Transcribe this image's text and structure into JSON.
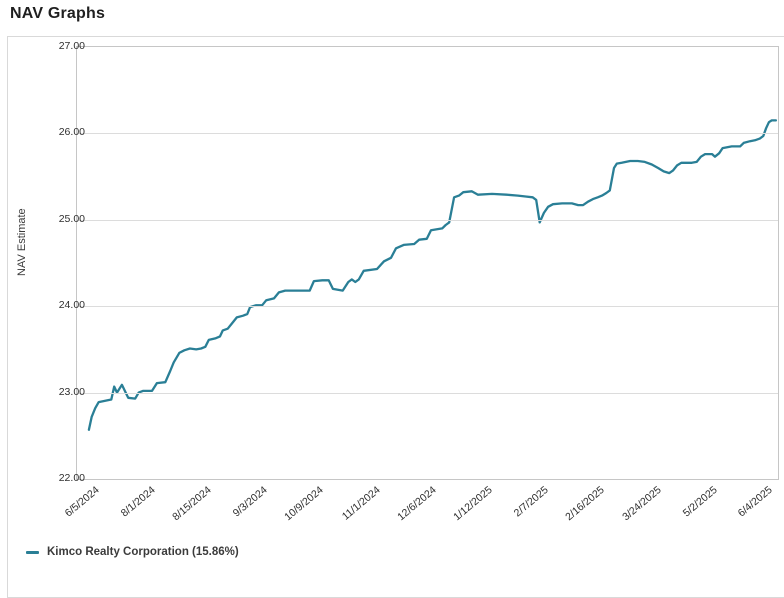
{
  "page": {
    "title": "NAV Graphs"
  },
  "legend": {
    "label": "Kimco Realty Corporation (15.86%)",
    "color": "#2a7f96"
  },
  "colors": {
    "line": "#2a7f96",
    "grid": "#dcdcdc",
    "plot_border": "#c6c6c6",
    "tick_text": "#2e2e2e"
  },
  "chart_data": {
    "type": "line",
    "title": "NAV Graphs",
    "xlabel": "",
    "ylabel": "NAV Estimate",
    "ylim": [
      22,
      27
    ],
    "grid": "horizontal",
    "legend_position": "bottom-left",
    "y_ticks": [
      {
        "value": 27,
        "label": "27.00"
      },
      {
        "value": 26,
        "label": "26.00"
      },
      {
        "value": 25,
        "label": "25.00"
      },
      {
        "value": 24,
        "label": "24.00"
      },
      {
        "value": 23,
        "label": "23.00"
      },
      {
        "value": 22,
        "label": "22.00"
      }
    ],
    "x_ticks": [
      {
        "pos": 0.017,
        "label": "6/5/2024"
      },
      {
        "pos": 0.097,
        "label": "8/1/2024"
      },
      {
        "pos": 0.177,
        "label": "8/15/2024"
      },
      {
        "pos": 0.257,
        "label": "9/3/2024"
      },
      {
        "pos": 0.337,
        "label": "10/9/2024"
      },
      {
        "pos": 0.418,
        "label": "11/1/2024"
      },
      {
        "pos": 0.498,
        "label": "12/6/2024"
      },
      {
        "pos": 0.578,
        "label": "1/12/2025"
      },
      {
        "pos": 0.658,
        "label": "2/7/2025"
      },
      {
        "pos": 0.738,
        "label": "2/16/2025"
      },
      {
        "pos": 0.819,
        "label": "3/24/2025"
      },
      {
        "pos": 0.899,
        "label": "5/2/2025"
      },
      {
        "pos": 0.977,
        "label": "6/4/2025"
      }
    ],
    "series": [
      {
        "name": "Kimco Realty Corporation",
        "gain_pct": "15.86%",
        "color": "#2a7f96",
        "points": [
          [
            0.017,
            22.57
          ],
          [
            0.021,
            22.72
          ],
          [
            0.026,
            22.82
          ],
          [
            0.031,
            22.89
          ],
          [
            0.043,
            22.91
          ],
          [
            0.049,
            22.92
          ],
          [
            0.053,
            23.07
          ],
          [
            0.057,
            23.0
          ],
          [
            0.064,
            23.09
          ],
          [
            0.073,
            22.94
          ],
          [
            0.083,
            22.93
          ],
          [
            0.088,
            23.0
          ],
          [
            0.094,
            23.02
          ],
          [
            0.107,
            23.02
          ],
          [
            0.114,
            23.11
          ],
          [
            0.126,
            23.12
          ],
          [
            0.133,
            23.25
          ],
          [
            0.138,
            23.35
          ],
          [
            0.146,
            23.46
          ],
          [
            0.153,
            23.49
          ],
          [
            0.161,
            23.51
          ],
          [
            0.17,
            23.5
          ],
          [
            0.177,
            23.51
          ],
          [
            0.183,
            23.53
          ],
          [
            0.188,
            23.61
          ],
          [
            0.198,
            23.63
          ],
          [
            0.204,
            23.65
          ],
          [
            0.208,
            23.72
          ],
          [
            0.215,
            23.74
          ],
          [
            0.221,
            23.8
          ],
          [
            0.228,
            23.87
          ],
          [
            0.237,
            23.89
          ],
          [
            0.243,
            23.91
          ],
          [
            0.247,
            23.99
          ],
          [
            0.255,
            24.01
          ],
          [
            0.264,
            24.01
          ],
          [
            0.27,
            24.07
          ],
          [
            0.281,
            24.09
          ],
          [
            0.288,
            24.16
          ],
          [
            0.297,
            24.18
          ],
          [
            0.314,
            24.18
          ],
          [
            0.332,
            24.18
          ],
          [
            0.338,
            24.29
          ],
          [
            0.35,
            24.3
          ],
          [
            0.359,
            24.3
          ],
          [
            0.365,
            24.2
          ],
          [
            0.379,
            24.18
          ],
          [
            0.387,
            24.28
          ],
          [
            0.392,
            24.31
          ],
          [
            0.397,
            24.28
          ],
          [
            0.402,
            24.31
          ],
          [
            0.409,
            24.41
          ],
          [
            0.428,
            24.43
          ],
          [
            0.438,
            24.52
          ],
          [
            0.448,
            24.56
          ],
          [
            0.455,
            24.67
          ],
          [
            0.466,
            24.71
          ],
          [
            0.481,
            24.72
          ],
          [
            0.488,
            24.77
          ],
          [
            0.499,
            24.78
          ],
          [
            0.505,
            24.88
          ],
          [
            0.521,
            24.9
          ],
          [
            0.526,
            24.94
          ],
          [
            0.531,
            24.97
          ],
          [
            0.538,
            25.26
          ],
          [
            0.545,
            25.28
          ],
          [
            0.551,
            25.32
          ],
          [
            0.563,
            25.33
          ],
          [
            0.572,
            25.29
          ],
          [
            0.592,
            25.3
          ],
          [
            0.613,
            25.29
          ],
          [
            0.629,
            25.28
          ],
          [
            0.64,
            25.27
          ],
          [
            0.65,
            25.26
          ],
          [
            0.655,
            25.23
          ],
          [
            0.66,
            24.97
          ],
          [
            0.666,
            25.08
          ],
          [
            0.672,
            25.15
          ],
          [
            0.679,
            25.18
          ],
          [
            0.692,
            25.19
          ],
          [
            0.706,
            25.19
          ],
          [
            0.715,
            25.17
          ],
          [
            0.722,
            25.17
          ],
          [
            0.729,
            25.21
          ],
          [
            0.736,
            25.24
          ],
          [
            0.743,
            25.26
          ],
          [
            0.749,
            25.28
          ],
          [
            0.755,
            25.31
          ],
          [
            0.76,
            25.34
          ],
          [
            0.766,
            25.6
          ],
          [
            0.77,
            25.65
          ],
          [
            0.777,
            25.66
          ],
          [
            0.789,
            25.68
          ],
          [
            0.8,
            25.68
          ],
          [
            0.81,
            25.67
          ],
          [
            0.82,
            25.64
          ],
          [
            0.829,
            25.6
          ],
          [
            0.837,
            25.56
          ],
          [
            0.845,
            25.54
          ],
          [
            0.85,
            25.57
          ],
          [
            0.856,
            25.63
          ],
          [
            0.862,
            25.66
          ],
          [
            0.877,
            25.66
          ],
          [
            0.884,
            25.67
          ],
          [
            0.89,
            25.73
          ],
          [
            0.896,
            25.76
          ],
          [
            0.906,
            25.76
          ],
          [
            0.91,
            25.73
          ],
          [
            0.916,
            25.77
          ],
          [
            0.921,
            25.83
          ],
          [
            0.934,
            25.85
          ],
          [
            0.946,
            25.85
          ],
          [
            0.951,
            25.89
          ],
          [
            0.96,
            25.91
          ],
          [
            0.967,
            25.92
          ],
          [
            0.974,
            25.94
          ],
          [
            0.979,
            25.97
          ],
          [
            0.983,
            26.06
          ],
          [
            0.987,
            26.13
          ],
          [
            0.991,
            26.15
          ],
          [
            0.997,
            26.15
          ]
        ]
      }
    ]
  }
}
